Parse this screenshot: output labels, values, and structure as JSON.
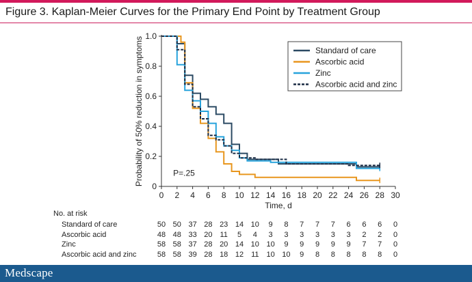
{
  "figure_title": "Figure 3. Kaplan-Meier Curves for the Primary End Point by Treatment Group",
  "brand": "Medscape",
  "colors": {
    "accent": "#d2195b",
    "footer": "#1b5a8e"
  },
  "chart_data": {
    "type": "line",
    "step": true,
    "xlabel": "Time, d",
    "ylabel": "Probability of 50% reduction in symptoms",
    "xlim": [
      0,
      30
    ],
    "ylim": [
      0,
      1.0
    ],
    "xticks": [
      0,
      2,
      4,
      6,
      8,
      10,
      12,
      14,
      16,
      18,
      20,
      22,
      24,
      26,
      28,
      30
    ],
    "yticks": [
      0,
      0.2,
      0.4,
      0.6,
      0.8,
      1.0
    ],
    "ytick_labels": [
      "0",
      "0.2",
      "0.4",
      "0.6",
      "0.8",
      "1.0"
    ],
    "grid": false,
    "legend_position": "top-right",
    "annotation": "P=.25",
    "series": [
      {
        "name": "Standard of care",
        "color": "#2b4a63",
        "dash": "solid",
        "steps": [
          [
            0,
            1.0
          ],
          [
            2,
            0.95
          ],
          [
            3,
            0.74
          ],
          [
            4,
            0.62
          ],
          [
            5,
            0.58
          ],
          [
            6,
            0.53
          ],
          [
            7,
            0.48
          ],
          [
            8,
            0.42
          ],
          [
            9,
            0.28
          ],
          [
            10,
            0.22
          ],
          [
            11,
            0.18
          ],
          [
            15,
            0.15
          ],
          [
            25,
            0.13
          ],
          [
            28,
            0.13
          ]
        ]
      },
      {
        "name": "Ascorbic acid",
        "color": "#e8961e",
        "dash": "solid",
        "steps": [
          [
            0,
            1.0
          ],
          [
            2.5,
            0.96
          ],
          [
            3,
            0.69
          ],
          [
            4,
            0.52
          ],
          [
            5,
            0.42
          ],
          [
            6,
            0.32
          ],
          [
            7,
            0.23
          ],
          [
            8,
            0.15
          ],
          [
            9,
            0.1
          ],
          [
            10,
            0.08
          ],
          [
            12,
            0.06
          ],
          [
            25,
            0.04
          ],
          [
            28,
            0.04
          ]
        ]
      },
      {
        "name": "Zinc",
        "color": "#27a3dc",
        "dash": "solid",
        "steps": [
          [
            0,
            1.0
          ],
          [
            2,
            0.81
          ],
          [
            3,
            0.64
          ],
          [
            4,
            0.57
          ],
          [
            5,
            0.5
          ],
          [
            6,
            0.42
          ],
          [
            7,
            0.33
          ],
          [
            8,
            0.27
          ],
          [
            9,
            0.24
          ],
          [
            10,
            0.19
          ],
          [
            11,
            0.17
          ],
          [
            14,
            0.16
          ],
          [
            25,
            0.12
          ],
          [
            28,
            0.12
          ]
        ]
      },
      {
        "name": "Ascorbic acid and zinc",
        "color": "#1a2b44",
        "dash": "dashed",
        "steps": [
          [
            0,
            1.0
          ],
          [
            2,
            0.91
          ],
          [
            3,
            0.68
          ],
          [
            4,
            0.53
          ],
          [
            5,
            0.45
          ],
          [
            6,
            0.34
          ],
          [
            7,
            0.31
          ],
          [
            8,
            0.27
          ],
          [
            9,
            0.22
          ],
          [
            10,
            0.19
          ],
          [
            12,
            0.18
          ],
          [
            16,
            0.15
          ],
          [
            24,
            0.14
          ],
          [
            28,
            0.14
          ]
        ]
      }
    ],
    "risk_table": {
      "title": "No. at risk",
      "times": [
        0,
        2,
        4,
        6,
        8,
        10,
        12,
        14,
        16,
        18,
        20,
        22,
        24,
        26,
        28,
        30
      ],
      "rows": [
        {
          "label": "Standard of care",
          "values": [
            50,
            50,
            37,
            28,
            23,
            14,
            10,
            9,
            8,
            7,
            7,
            7,
            6,
            6,
            6,
            0
          ]
        },
        {
          "label": "Ascorbic acid",
          "values": [
            48,
            48,
            33,
            20,
            11,
            5,
            4,
            3,
            3,
            3,
            3,
            3,
            3,
            2,
            2,
            0
          ]
        },
        {
          "label": "Zinc",
          "values": [
            58,
            58,
            37,
            28,
            20,
            14,
            10,
            10,
            9,
            9,
            9,
            9,
            9,
            7,
            7,
            0
          ]
        },
        {
          "label": "Ascorbic acid and zinc",
          "values": [
            58,
            58,
            39,
            28,
            18,
            12,
            11,
            10,
            10,
            9,
            8,
            8,
            8,
            8,
            8,
            0
          ]
        }
      ]
    }
  }
}
